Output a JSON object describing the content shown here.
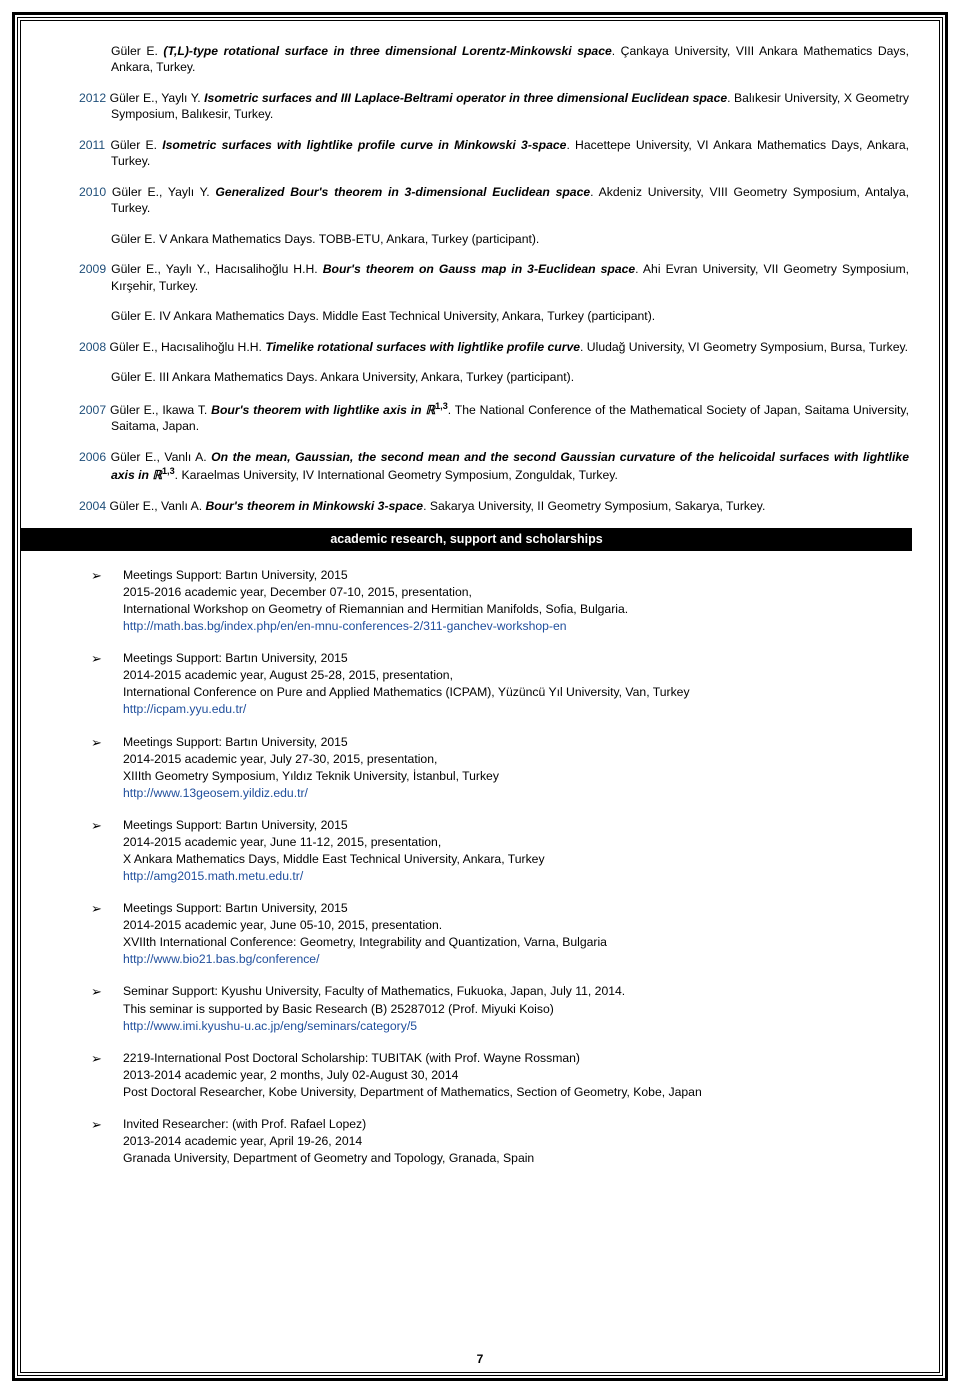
{
  "entries": [
    {
      "year": "",
      "prefix": "Güler E. ",
      "title": "(T,L)-type rotational surface in three dimensional Lorentz-Minkowski space",
      "suffix": ". Çankaya University, VIII Ankara Mathematics Days, Ankara, Turkey."
    },
    {
      "year": "2012",
      "prefix": " Güler E., Yaylı Y. ",
      "title": "Isometric surfaces and III Laplace-Beltrami operator in three dimensional Euclidean space",
      "suffix": ". Balıkesir University, X Geometry Symposium, Balıkesir, Turkey."
    },
    {
      "year": "2011",
      "prefix": " Güler E. ",
      "title": "Isometric surfaces with lightlike profile curve in Minkowski 3-space",
      "suffix": ". Hacettepe University, VI Ankara Mathematics Days, Ankara, Turkey."
    },
    {
      "year": "2010",
      "prefix": " Güler E., Yaylı Y. ",
      "title": "Generalized Bour's theorem in 3-dimensional Euclidean space",
      "suffix": ". Akdeniz University, VIII Geometry Symposium, Antalya, Turkey."
    },
    {
      "year": "",
      "prefix": "Güler E. V Ankara Mathematics Days. TOBB-ETU, Ankara, Turkey (participant).",
      "title": "",
      "suffix": ""
    },
    {
      "year": "2009",
      "prefix": " Güler E., Yaylı Y., Hacısalihoğlu H.H. ",
      "title": "Bour's theorem on Gauss map in 3-Euclidean space",
      "suffix": ". Ahi Evran University, VII Geometry Symposium, Kırşehir, Turkey."
    },
    {
      "year": "",
      "prefix": "Güler E. IV Ankara Mathematics Days. Middle East Technical University, Ankara, Turkey (participant).",
      "title": "",
      "suffix": ""
    },
    {
      "year": "2008",
      "prefix": " Güler E., Hacısalihoğlu H.H. ",
      "title": "Timelike rotational surfaces with lightlike profile curve",
      "suffix": ". Uludağ University, VI Geometry Symposium, Bursa, Turkey."
    },
    {
      "year": "",
      "prefix": "Güler E. III Ankara Mathematics Days. Ankara University, Ankara, Turkey (participant).",
      "title": "",
      "suffix": ""
    }
  ],
  "entry2007": {
    "year": "2007",
    "prefix": " Güler E., Ikawa T. ",
    "title": "Bour's theorem with lightlike axis in ",
    "rset": "ℝ",
    "sup": "1,3",
    "suffix": ". The National Conference of the Mathematical Society of Japan, Saitama University, Saitama, Japan."
  },
  "entry2006": {
    "year": "2006",
    "prefix": "  Güler E., Vanlı A. ",
    "title1": "On the mean, Gaussian, the second mean and the second Gaussian curvature of the helicoidal surfaces with lightlike axis in ",
    "rset": "ℝ",
    "sup": "1,3",
    "suffix": ". Karaelmas University, IV International Geometry Symposium, Zonguldak, Turkey."
  },
  "entry2004": {
    "year": "2004",
    "prefix": "  Güler E., Vanlı A. ",
    "title": "Bour's theorem in Minkowski 3-space",
    "suffix": ". Sakarya University, II Geometry Symposium, Sakarya, Turkey."
  },
  "section_header": "academic research, support and scholarships",
  "support": [
    {
      "lines": [
        "Meetings Support: Bartın University, 2015",
        "2015-2016 academic year, December 07-10, 2015, presentation,",
        "International Workshop on Geometry of Riemannian and Hermitian Manifolds, Sofia, Bulgaria."
      ],
      "link": "http://math.bas.bg/index.php/en/en-mnu-conferences-2/311-ganchev-workshop-en"
    },
    {
      "lines": [
        "Meetings Support: Bartın University, 2015",
        "2014-2015 academic year, August 25-28, 2015, presentation,",
        "International Conference on Pure and Applied Mathematics (ICPAM), Yüzüncü Yıl University, Van, Turkey"
      ],
      "link": "http://icpam.yyu.edu.tr/"
    },
    {
      "lines": [
        "Meetings Support: Bartın University, 2015",
        "2014-2015 academic year, July 27-30, 2015, presentation,",
        "XIIIth Geometry Symposium, Yıldız Teknik University, İstanbul, Turkey"
      ],
      "link": "http://www.13geosem.yildiz.edu.tr/"
    },
    {
      "lines": [
        "Meetings Support: Bartın University, 2015",
        "2014-2015 academic year, June 11-12, 2015, presentation,",
        "X Ankara Mathematics Days, Middle East Technical University, Ankara, Turkey"
      ],
      "link": "http://amg2015.math.metu.edu.tr/"
    },
    {
      "lines": [
        "Meetings Support: Bartın University, 2015",
        "2014-2015 academic year, June 05-10, 2015, presentation.",
        "XVIIth International Conference: Geometry, Integrability and Quantization, Varna, Bulgaria"
      ],
      "link": "http://www.bio21.bas.bg/conference/"
    },
    {
      "lines": [
        "Seminar Support: Kyushu University, Faculty of Mathematics, Fukuoka, Japan, July 11, 2014.",
        "This seminar is supported by Basic Research (B) 25287012 (Prof. Miyuki Koiso)"
      ],
      "link": "http://www.imi.kyushu-u.ac.jp/eng/seminars/category/5"
    },
    {
      "lines": [
        "2219-International Post Doctoral Scholarship: TUBITAK (with Prof. Wayne Rossman)",
        "2013-2014 academic year, 2 months, July 02-August 30, 2014",
        "Post Doctoral Researcher, Kobe University, Department of Mathematics, Section of Geometry, Kobe, Japan"
      ],
      "link": ""
    },
    {
      "lines": [
        "Invited Researcher: (with Prof. Rafael Lopez)",
        "2013-2014 academic year, April 19-26, 2014",
        "Granada University, Department of Geometry and Topology, Granada, Spain"
      ],
      "link": ""
    }
  ],
  "bullet": "➢",
  "page_num": "7"
}
